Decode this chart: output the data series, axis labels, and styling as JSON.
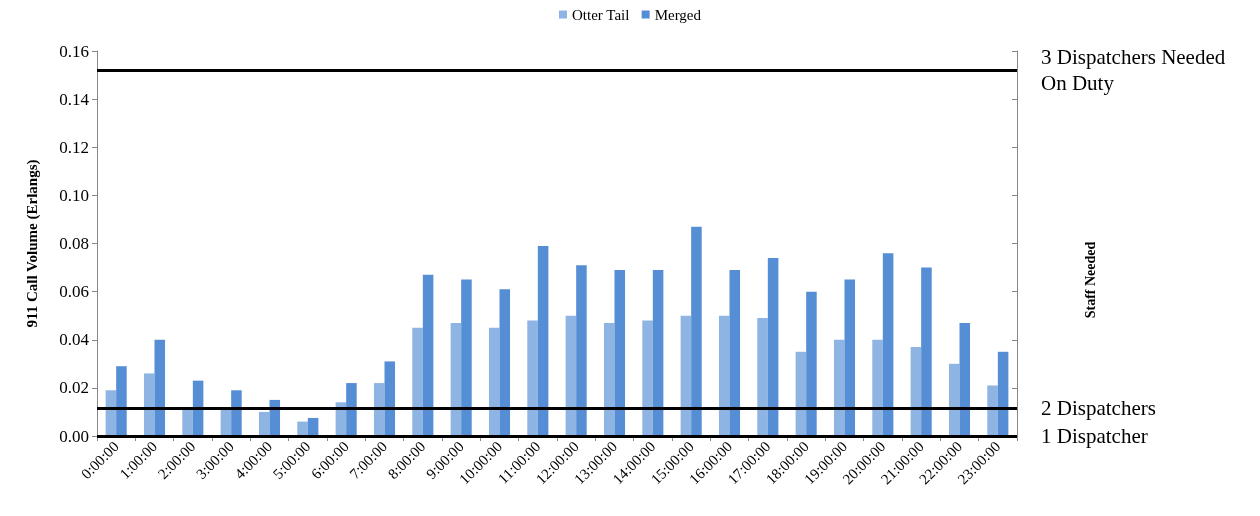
{
  "chart_data": {
    "type": "bar",
    "ylabel": "911 Call Volume (Erlangs)",
    "annotations": [
      "Staff Needed"
    ],
    "categories": [
      "0:00:00",
      "1:00:00",
      "2:00:00",
      "3:00:00",
      "4:00:00",
      "5:00:00",
      "6:00:00",
      "7:00:00",
      "8:00:00",
      "9:00:00",
      "10:00:00",
      "11:00:00",
      "12:00:00",
      "13:00:00",
      "14:00:00",
      "15:00:00",
      "16:00:00",
      "17:00:00",
      "18:00:00",
      "19:00:00",
      "20:00:00",
      "21:00:00",
      "22:00:00",
      "23:00:00"
    ],
    "series": [
      {
        "name": "Otter Tail",
        "color": "#8eb4e3",
        "values": [
          0.019,
          0.026,
          0.012,
          0.012,
          0.01,
          0.006,
          0.014,
          0.022,
          0.045,
          0.047,
          0.045,
          0.048,
          0.05,
          0.047,
          0.048,
          0.05,
          0.05,
          0.049,
          0.035,
          0.04,
          0.04,
          0.037,
          0.03,
          0.021
        ]
      },
      {
        "name": "Merged",
        "color": "#558ed5",
        "values": [
          0.029,
          0.04,
          0.023,
          0.019,
          0.015,
          0.0075,
          0.022,
          0.031,
          0.067,
          0.065,
          0.061,
          0.079,
          0.071,
          0.069,
          0.069,
          0.087,
          0.069,
          0.074,
          0.06,
          0.065,
          0.076,
          0.07,
          0.047,
          0.035
        ]
      }
    ],
    "ylim": [
      0,
      0.16
    ],
    "yticks": [
      {
        "value": 0,
        "label": "0.00"
      },
      {
        "value": 0.02,
        "label": "0.02"
      },
      {
        "value": 0.04,
        "label": "0.04"
      },
      {
        "value": 0.06,
        "label": "0.06"
      },
      {
        "value": 0.08,
        "label": "0.08"
      },
      {
        "value": 0.1,
        "label": "0.10"
      },
      {
        "value": 0.12,
        "label": "0.12"
      },
      {
        "value": 0.14,
        "label": "0.14"
      },
      {
        "value": 0.16,
        "label": "0.16"
      }
    ],
    "ref_lines": [
      {
        "axis": "y",
        "value": 0.152,
        "label": "3 Dispatchers Needed On Duty",
        "color": "#000000"
      },
      {
        "axis": "y",
        "value": 0.0115,
        "label": "2 Dispatchers",
        "color": "#000000"
      },
      {
        "axis": "y",
        "value": 0,
        "label": "1 Dispatcher",
        "color": "#000000"
      }
    ],
    "grid": false,
    "legend": "top"
  }
}
